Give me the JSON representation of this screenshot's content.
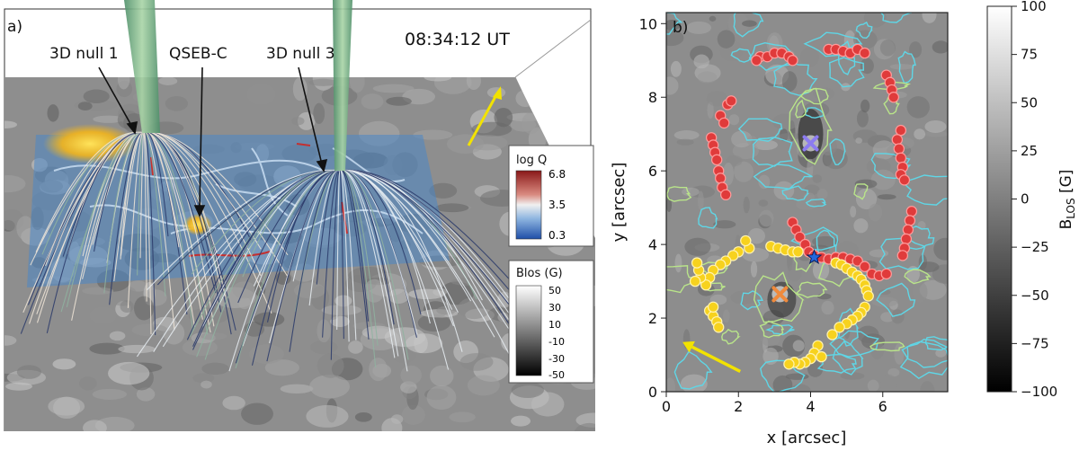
{
  "panel_a": {
    "panel_label": "a)",
    "timestamp": "08:34:12 UT",
    "annotations": {
      "null1": "3D null 1",
      "qseb": "QSEB-C",
      "null3": "3D null 3"
    },
    "colorbar_logq": {
      "title": "log Q",
      "ticks": [
        "6.8",
        "3.5",
        "0.3"
      ]
    },
    "colorbar_blos": {
      "title": "Blos (G)",
      "ticks": [
        "50",
        "30",
        "10",
        "-10",
        "-30",
        "-50"
      ]
    }
  },
  "panel_b": {
    "panel_label": "b)",
    "xlabel": "x [arcsec]",
    "ylabel": "y [arcsec]",
    "colorbar_label": "B",
    "colorbar_label_sub": "LOS",
    "colorbar_label_unit": " [G]"
  },
  "chart_data": {
    "type": "scatter",
    "xlim": [
      0,
      7.8
    ],
    "ylim": [
      0,
      10.3
    ],
    "xticks": [
      0,
      2,
      4,
      6
    ],
    "yticks": [
      0,
      2,
      4,
      6,
      8,
      10
    ],
    "colorbar_range": [
      -100,
      100
    ],
    "colorbar_ticks": [
      100,
      75,
      50,
      25,
      0,
      -25,
      -50,
      -75,
      -100
    ],
    "series": [
      {
        "color": "#e03b3b",
        "points": [
          [
            2.6,
            9.1
          ],
          [
            2.8,
            9.1
          ],
          [
            3.0,
            9.2
          ],
          [
            3.2,
            9.2
          ],
          [
            3.4,
            9.1
          ],
          [
            3.5,
            9.0
          ],
          [
            2.5,
            9.0
          ],
          [
            4.5,
            9.3
          ],
          [
            4.7,
            9.3
          ],
          [
            4.9,
            9.25
          ],
          [
            5.1,
            9.2
          ],
          [
            5.3,
            9.3
          ],
          [
            5.5,
            9.2
          ],
          [
            6.1,
            8.6
          ],
          [
            6.2,
            8.4
          ],
          [
            6.25,
            8.2
          ],
          [
            6.3,
            8.0
          ],
          [
            1.7,
            7.8
          ],
          [
            1.8,
            7.9
          ],
          [
            1.5,
            7.5
          ],
          [
            1.6,
            7.3
          ],
          [
            1.25,
            6.9
          ],
          [
            1.3,
            6.7
          ],
          [
            1.35,
            6.5
          ],
          [
            1.4,
            6.3
          ],
          [
            1.45,
            6.0
          ],
          [
            1.5,
            5.8
          ],
          [
            1.55,
            5.55
          ],
          [
            1.65,
            5.35
          ],
          [
            6.5,
            7.1
          ],
          [
            6.4,
            6.85
          ],
          [
            6.45,
            6.6
          ],
          [
            6.5,
            6.35
          ],
          [
            6.55,
            6.1
          ],
          [
            6.5,
            5.9
          ],
          [
            6.6,
            5.75
          ],
          [
            6.8,
            4.9
          ],
          [
            6.75,
            4.65
          ],
          [
            6.7,
            4.4
          ],
          [
            6.65,
            4.15
          ],
          [
            6.6,
            3.9
          ],
          [
            6.55,
            3.7
          ],
          [
            3.5,
            4.6
          ],
          [
            3.6,
            4.4
          ],
          [
            3.7,
            4.2
          ],
          [
            3.85,
            4.0
          ],
          [
            3.95,
            3.8
          ],
          [
            4.1,
            3.7
          ],
          [
            4.3,
            3.65
          ],
          [
            4.5,
            3.6
          ],
          [
            4.7,
            3.65
          ],
          [
            4.9,
            3.65
          ],
          [
            5.1,
            3.6
          ],
          [
            5.3,
            3.55
          ],
          [
            5.5,
            3.4
          ],
          [
            5.7,
            3.2
          ],
          [
            5.9,
            3.15
          ],
          [
            6.1,
            3.2
          ]
        ]
      },
      {
        "color": "#f7d21e",
        "points": [
          [
            2.9,
            3.95
          ],
          [
            3.1,
            3.9
          ],
          [
            3.3,
            3.85
          ],
          [
            3.5,
            3.8
          ],
          [
            3.65,
            3.8
          ],
          [
            2.3,
            3.9
          ],
          [
            2.2,
            4.1
          ],
          [
            2.0,
            3.8
          ],
          [
            1.85,
            3.7
          ],
          [
            1.65,
            3.55
          ],
          [
            1.5,
            3.45
          ],
          [
            1.3,
            3.3
          ],
          [
            1.2,
            3.1
          ],
          [
            1.1,
            2.9
          ],
          [
            0.95,
            3.1
          ],
          [
            0.9,
            3.3
          ],
          [
            0.85,
            3.5
          ],
          [
            0.8,
            3.0
          ],
          [
            1.2,
            2.2
          ],
          [
            1.3,
            2.05
          ],
          [
            1.4,
            1.9
          ],
          [
            1.3,
            2.3
          ],
          [
            1.45,
            1.75
          ],
          [
            4.7,
            3.5
          ],
          [
            4.85,
            3.45
          ],
          [
            5.0,
            3.35
          ],
          [
            5.15,
            3.25
          ],
          [
            5.3,
            3.15
          ],
          [
            5.4,
            3.05
          ],
          [
            5.5,
            2.9
          ],
          [
            5.55,
            2.75
          ],
          [
            5.6,
            2.6
          ],
          [
            5.5,
            2.3
          ],
          [
            5.4,
            2.15
          ],
          [
            5.3,
            2.05
          ],
          [
            5.15,
            1.95
          ],
          [
            5.0,
            1.85
          ],
          [
            4.8,
            1.75
          ],
          [
            4.6,
            1.55
          ],
          [
            4.2,
            1.25
          ],
          [
            4.1,
            1.05
          ],
          [
            4.0,
            0.9
          ],
          [
            3.85,
            0.8
          ],
          [
            3.7,
            0.75
          ],
          [
            3.55,
            0.8
          ],
          [
            3.4,
            0.75
          ],
          [
            4.3,
            0.95
          ]
        ]
      }
    ],
    "markers": [
      {
        "x": 3.15,
        "y": 2.65,
        "marker": "x",
        "color": "#f08a3c"
      },
      {
        "x": 4.0,
        "y": 6.75,
        "marker": "x",
        "color": "#8c7cf0"
      },
      {
        "x": 4.1,
        "y": 3.65,
        "marker": "star",
        "color": "#2266dd"
      }
    ],
    "arrow": {
      "from": [
        2.05,
        0.55
      ],
      "to": [
        0.45,
        1.35
      ],
      "color": "#f2e200"
    }
  }
}
